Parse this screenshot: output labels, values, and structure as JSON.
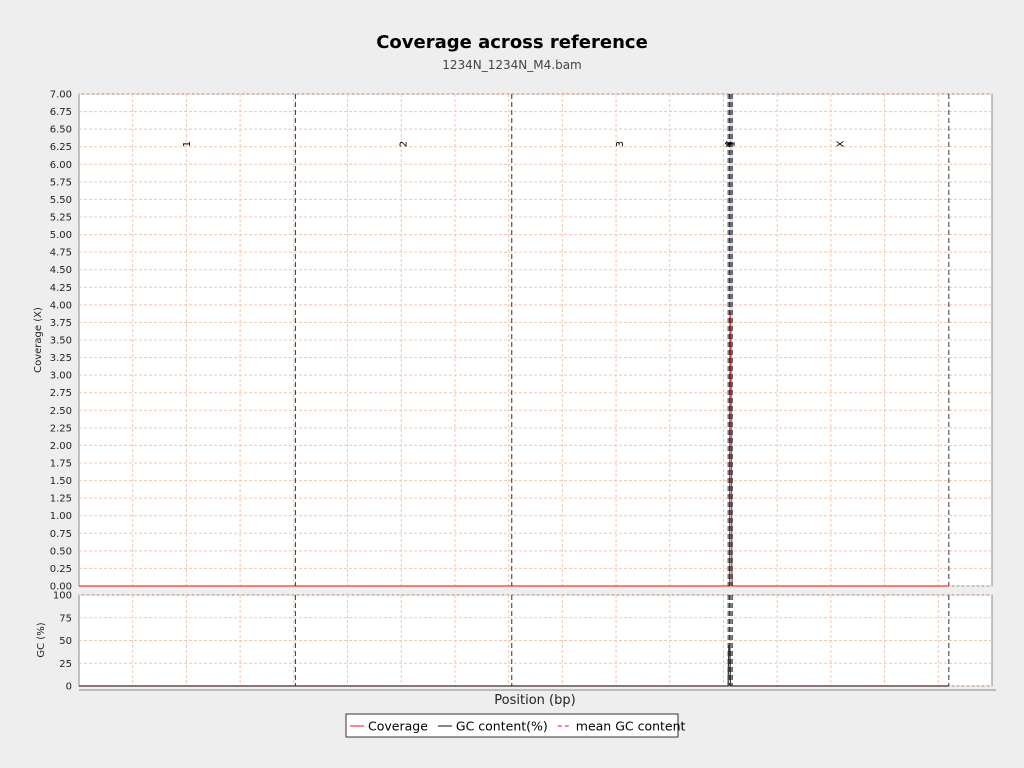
{
  "chart_data": {
    "type": "line",
    "title": "Coverage across reference",
    "subtitle": "1234N_1234N_M4.bam",
    "xlabel": "Position (bp)",
    "coverage_panel": {
      "ylabel": "Coverage (X)",
      "ylim": [
        0,
        7.0
      ],
      "yticks": [
        "0.00",
        "0.25",
        "0.50",
        "0.75",
        "1.00",
        "1.25",
        "1.50",
        "1.75",
        "2.00",
        "2.25",
        "2.50",
        "2.75",
        "3.00",
        "3.25",
        "3.50",
        "3.75",
        "4.00",
        "4.25",
        "4.50",
        "4.75",
        "5.00",
        "5.25",
        "5.50",
        "5.75",
        "6.00",
        "6.25",
        "6.50",
        "6.75",
        "7.00"
      ],
      "grid": true
    },
    "gc_panel": {
      "ylabel": "GC (%)",
      "ylim": [
        0,
        100
      ],
      "yticks": [
        "0",
        "25",
        "50",
        "75",
        "100"
      ],
      "grid": true
    },
    "xlim": [
      0,
      1
    ],
    "chromosomes": [
      {
        "name": "1",
        "start": 0.0,
        "end": 0.237
      },
      {
        "name": "2",
        "start": 0.237,
        "end": 0.474
      },
      {
        "name": "3",
        "start": 0.474,
        "end": 0.711
      },
      {
        "name": "4",
        "start": 0.711,
        "end": 0.7125
      },
      {
        "name": "Y",
        "start": 0.7125,
        "end": 0.714
      },
      {
        "name": "1",
        "start": 0.714,
        "end": 0.7155
      },
      {
        "name": "X",
        "start": 0.7155,
        "end": 0.9527
      }
    ],
    "highlight_region": [
      0.7125,
      0.7155
    ],
    "series": [
      {
        "name": "Coverage",
        "color": "#ff3333",
        "x": [
          0,
          0.7125,
          0.713,
          0.7135,
          0.714,
          0.715,
          0.7155,
          0.9527
        ],
        "y": [
          0,
          0,
          3.9,
          3.8,
          3.6,
          0.3,
          0,
          0
        ]
      },
      {
        "name": "GC content(%)",
        "color": "#333333",
        "x": [
          0,
          0.711,
          0.7115,
          0.712,
          0.7125,
          0.713,
          0.7135,
          0.9527
        ],
        "y": [
          0,
          0,
          38,
          45,
          40,
          42,
          0,
          0
        ]
      },
      {
        "name": "mean GC content",
        "color": "#ff3366",
        "dashed": true,
        "x": [
          0,
          0.9527
        ],
        "y": [
          0.5,
          0.5
        ]
      }
    ],
    "legend": {
      "placement": "bottom-center"
    }
  }
}
